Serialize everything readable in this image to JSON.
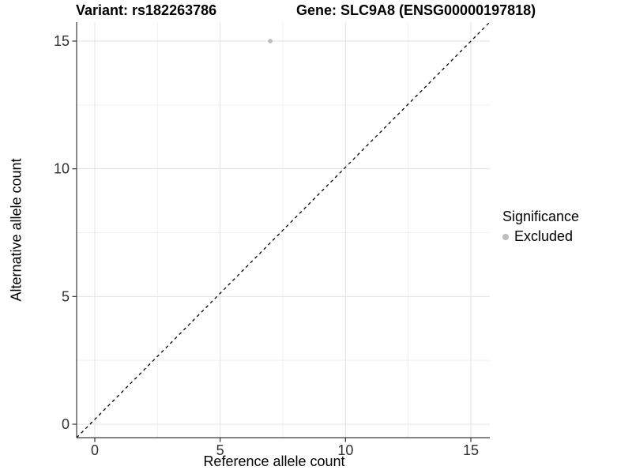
{
  "chart_data": {
    "type": "scatter",
    "title_left": "Variant: rs182263786",
    "title_right": "Gene: SLC9A8 (ENSG00000197818)",
    "xlabel": "Reference allele count",
    "ylabel": "Alternative allele count",
    "x_ticks": [
      0,
      5,
      10,
      15
    ],
    "y_ticks": [
      0,
      5,
      10,
      15
    ],
    "x_minor_ticks": [
      2.5,
      7.5,
      12.5
    ],
    "y_minor_ticks": [
      2.5,
      7.5,
      12.5
    ],
    "xlim": [
      -0.75,
      15.75
    ],
    "ylim": [
      -0.55,
      15.75
    ],
    "grid": "major-and-minor",
    "legend_position": "right",
    "points": [
      {
        "x": 7,
        "y": 15,
        "significance": "Excluded"
      }
    ],
    "identity_line": {
      "slope": 1,
      "intercept": 0,
      "style": "dashed",
      "color": "#000000"
    },
    "legend": {
      "title": "Significance",
      "entries": [
        {
          "label": "Excluded",
          "color": "#bdbdbd"
        }
      ]
    },
    "colors": {
      "point": "#bdbdbd",
      "grid_major": "#e3e3e3",
      "grid_minor": "#f0f0f0",
      "axis_line": "#3c3c3c",
      "tick_mark": "#333333",
      "tick_label": "#303030",
      "background": "#ffffff"
    }
  }
}
